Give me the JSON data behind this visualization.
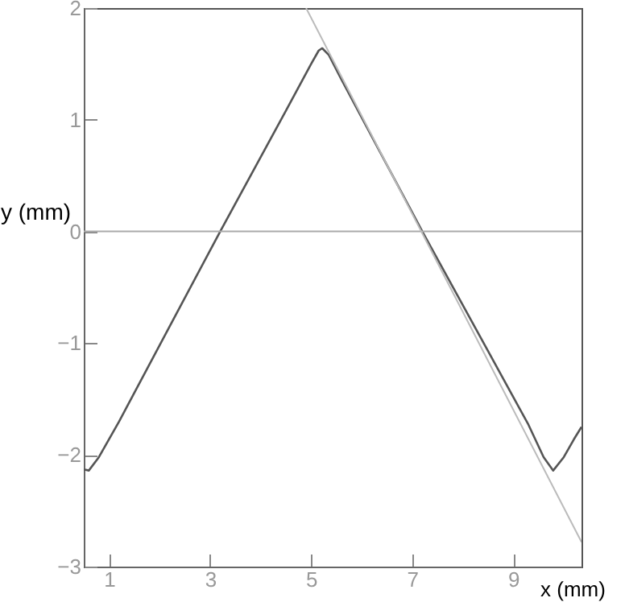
{
  "chart_data": {
    "type": "line",
    "xlabel": "x (mm)",
    "ylabel": "y (mm)",
    "xlim": [
      0.5,
      10.35
    ],
    "ylim": [
      -3,
      2
    ],
    "xticks": [
      1,
      3,
      5,
      7,
      9
    ],
    "yticks": [
      -3,
      -2,
      -1,
      0,
      1,
      2
    ],
    "grid": false,
    "ref_lines": [
      {
        "axis": "y",
        "value": 0,
        "color": "#aaaaaa"
      }
    ],
    "series": [
      {
        "color": "#555555",
        "x": [
          0.5,
          0.6,
          0.8,
          1.2,
          2,
          3.2,
          4.5,
          5,
          5.15,
          5.22,
          5.35,
          5.6,
          7.2,
          8.5,
          9.3,
          9.6,
          9.79,
          10,
          10.2,
          10.35
        ],
        "values": [
          -2.13,
          -2.14,
          -2.02,
          -1.7,
          -1.02,
          0,
          1.08,
          1.5,
          1.62,
          1.64,
          1.58,
          1.36,
          0,
          -1.07,
          -1.73,
          -2.02,
          -2.14,
          -2.02,
          -1.86,
          -1.75
        ]
      },
      {
        "color": "#bbbbbb",
        "x": [
          4.9,
          10.35
        ],
        "values": [
          2,
          -2.78
        ]
      }
    ]
  }
}
